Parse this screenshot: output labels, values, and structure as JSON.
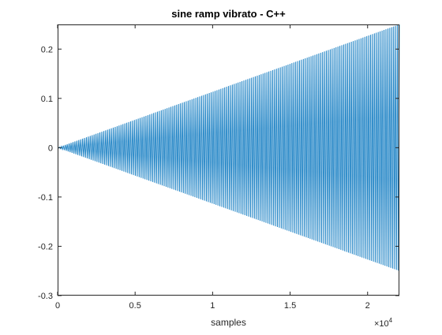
{
  "chart_data": {
    "type": "line",
    "title": "sine ramp vibrato - C++",
    "xlabel": "samples",
    "ylabel": "",
    "xlim": [
      0,
      22050
    ],
    "ylim": [
      -0.3,
      0.25
    ],
    "x_tick_values": [
      0,
      5000,
      10000,
      15000,
      20000
    ],
    "x_tick_labels": [
      "0",
      "0.5",
      "1",
      "1.5",
      "2"
    ],
    "x_exponent_base": "×10",
    "x_exponent_power": "4",
    "y_tick_values": [
      -0.3,
      -0.2,
      -0.1,
      0,
      0.1,
      0.2
    ],
    "y_tick_labels": [
      "-0.3",
      "-0.2",
      "-0.1",
      "0",
      "0.1",
      "0.2"
    ],
    "grid": false,
    "series_color": "#0072BD",
    "signal": {
      "description_of_trend": "oscillation with linearly increasing envelope",
      "envelope_start": 0,
      "envelope_end": 0.25,
      "x_start": 0,
      "x_end": 22050
    }
  }
}
